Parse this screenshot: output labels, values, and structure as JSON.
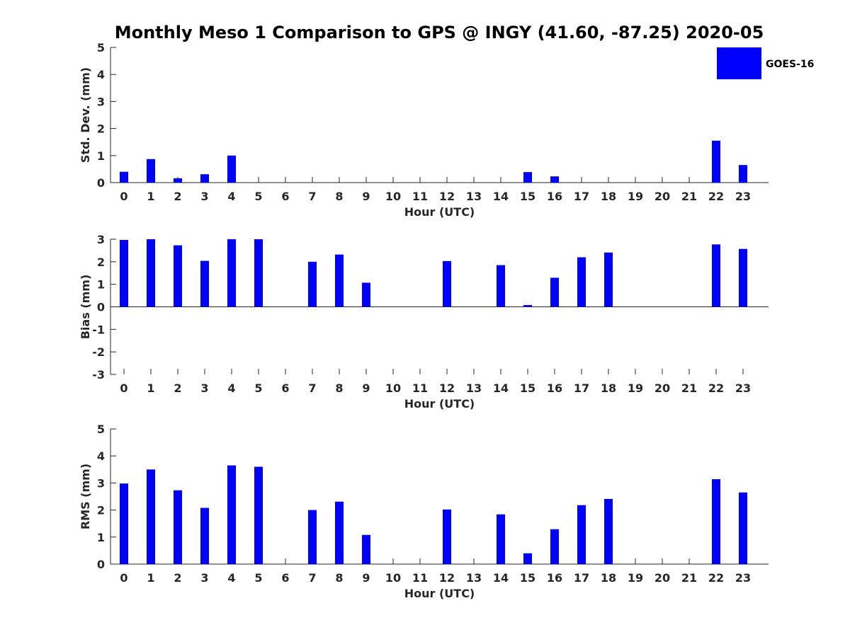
{
  "title": "Monthly Meso 1 Comparison to GPS @ INGY (41.60, -87.25) 2020-05",
  "legend": {
    "label": "GOES-16",
    "color": "#0000ff"
  },
  "chart_data": [
    {
      "type": "bar",
      "xlabel": "Hour (UTC)",
      "ylabel": "Std. Dev. (mm)",
      "ylim": [
        0,
        5
      ],
      "yticks": [
        0,
        1,
        2,
        3,
        4,
        5
      ],
      "categories": [
        "0",
        "1",
        "2",
        "3",
        "4",
        "5",
        "6",
        "7",
        "8",
        "9",
        "10",
        "11",
        "12",
        "13",
        "14",
        "15",
        "16",
        "17",
        "18",
        "19",
        "20",
        "21",
        "22",
        "23"
      ],
      "series": [
        {
          "name": "GOES-16",
          "color": "#0000ff",
          "values": [
            0.4,
            0.87,
            0.16,
            0.31,
            1.0,
            0,
            0,
            0,
            0,
            0,
            0,
            0,
            0,
            0,
            0,
            0.39,
            0.23,
            0,
            0,
            0,
            0,
            0,
            1.55,
            0.65
          ]
        }
      ]
    },
    {
      "type": "bar",
      "xlabel": "Hour (UTC)",
      "ylabel": "Bias (mm)",
      "ylim": [
        -3,
        3
      ],
      "yticks": [
        -3,
        -2,
        -1,
        0,
        1,
        2,
        3
      ],
      "categories": [
        "0",
        "1",
        "2",
        "3",
        "4",
        "5",
        "6",
        "7",
        "8",
        "9",
        "10",
        "11",
        "12",
        "13",
        "14",
        "15",
        "16",
        "17",
        "18",
        "19",
        "20",
        "21",
        "22",
        "23"
      ],
      "series": [
        {
          "name": "GOES-16",
          "color": "#0000ff",
          "values": [
            2.97,
            3.0,
            2.73,
            2.04,
            3.0,
            3.0,
            0,
            2.0,
            2.32,
            1.07,
            0,
            0,
            2.03,
            0,
            1.85,
            0.08,
            1.29,
            2.2,
            2.41,
            0,
            0,
            0,
            2.77,
            2.57
          ]
        }
      ]
    },
    {
      "type": "bar",
      "xlabel": "Hour (UTC)",
      "ylabel": "RMS (mm)",
      "ylim": [
        0,
        5
      ],
      "yticks": [
        0,
        1,
        2,
        3,
        4,
        5
      ],
      "categories": [
        "0",
        "1",
        "2",
        "3",
        "4",
        "5",
        "6",
        "7",
        "8",
        "9",
        "10",
        "11",
        "12",
        "13",
        "14",
        "15",
        "16",
        "17",
        "18",
        "19",
        "20",
        "21",
        "22",
        "23"
      ],
      "series": [
        {
          "name": "GOES-16",
          "color": "#0000ff",
          "values": [
            2.98,
            3.5,
            2.73,
            2.08,
            3.65,
            3.6,
            0,
            2.0,
            2.31,
            1.08,
            0,
            0,
            2.02,
            0,
            1.84,
            0.4,
            1.29,
            2.18,
            2.41,
            0,
            0,
            0,
            3.14,
            2.65
          ]
        }
      ]
    }
  ]
}
